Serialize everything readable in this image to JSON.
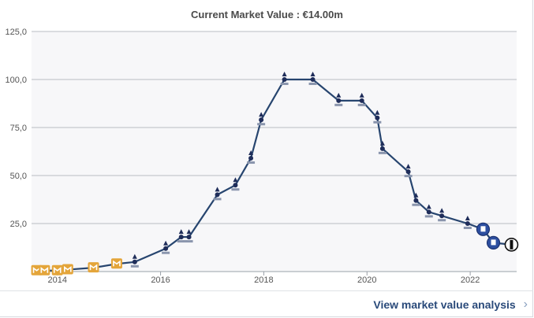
{
  "header": {
    "title": "Current Market Value : €14.00m"
  },
  "footer": {
    "link_label": "View market value analysis",
    "link_icon": "chevron-right-icon"
  },
  "colors": {
    "line": "#27456f",
    "plot_bg": "#f7f7f9",
    "grid": "#b8bcc4",
    "mk_dons": "#e4a53a",
    "spurs": "#1f2d5a",
    "everton": "#2d4fa0"
  },
  "chart_data": {
    "type": "line",
    "title": "Current Market Value : €14.00m",
    "xlabel": "",
    "ylabel": "",
    "xlim": [
      2013.5,
      2022.9
    ],
    "ylim": [
      0,
      125
    ],
    "x_ticks": [
      2014,
      2016,
      2018,
      2020,
      2022
    ],
    "x_tick_labels": [
      "2014",
      "2016",
      "2018",
      "2020",
      "2022"
    ],
    "y_ticks": [
      25,
      50,
      75,
      100,
      125
    ],
    "y_tick_labels": [
      "25,0",
      "50,0",
      "75,0",
      "100,0",
      "125,0"
    ],
    "grid": true,
    "series": [
      {
        "x": [
          2013.6,
          2013.75,
          2014.0,
          2014.2,
          2014.7,
          2015.15,
          2015.5,
          2016.1,
          2016.4,
          2016.55,
          2017.1,
          2017.45,
          2017.75,
          2017.95,
          2018.4,
          2018.95,
          2019.45,
          2019.9,
          2020.2,
          2020.3,
          2020.8,
          2020.95,
          2021.2,
          2021.45,
          2021.95,
          2022.25,
          2022.45,
          2022.8
        ],
        "y": [
          0.5,
          0.5,
          0.5,
          1,
          2,
          4,
          5,
          12,
          18,
          18,
          40,
          45,
          59,
          79,
          100,
          100,
          89,
          89,
          80,
          64,
          52,
          37,
          31,
          29,
          25,
          22,
          15,
          14
        ],
        "clubs": [
          "MK Dons",
          "MK Dons",
          "MK Dons",
          "MK Dons",
          "MK Dons",
          "MK Dons",
          "Tottenham",
          "Tottenham",
          "Tottenham",
          "Tottenham",
          "Tottenham",
          "Tottenham",
          "Tottenham",
          "Tottenham",
          "Tottenham",
          "Tottenham",
          "Tottenham",
          "Tottenham",
          "Tottenham",
          "Tottenham",
          "Tottenham",
          "Tottenham",
          "Tottenham",
          "Tottenham",
          "Tottenham",
          "Everton",
          "Everton",
          "Besiktas"
        ]
      }
    ]
  }
}
